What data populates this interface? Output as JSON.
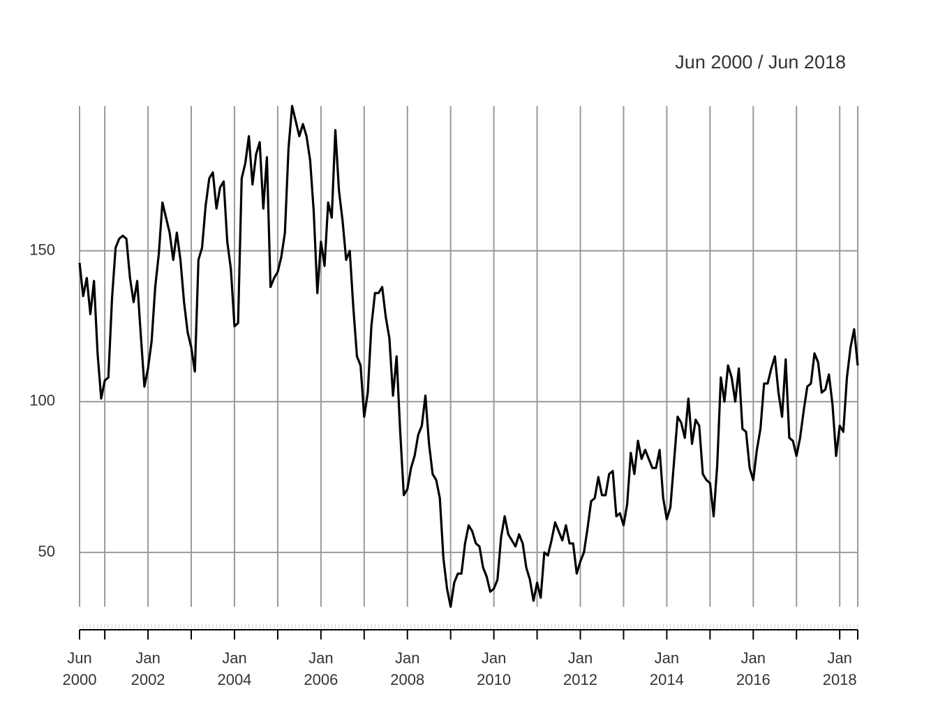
{
  "chart_data": {
    "type": "line",
    "title": "Jun 2000 / Jun 2018",
    "x": [
      "2000-06",
      "2000-07",
      "2000-08",
      "2000-09",
      "2000-10",
      "2000-11",
      "2000-12",
      "2001-01",
      "2001-02",
      "2001-03",
      "2001-04",
      "2001-05",
      "2001-06",
      "2001-07",
      "2001-08",
      "2001-09",
      "2001-10",
      "2001-11",
      "2001-12",
      "2002-01",
      "2002-02",
      "2002-03",
      "2002-04",
      "2002-05",
      "2002-06",
      "2002-07",
      "2002-08",
      "2002-09",
      "2002-10",
      "2002-11",
      "2002-12",
      "2003-01",
      "2003-02",
      "2003-03",
      "2003-04",
      "2003-05",
      "2003-06",
      "2003-07",
      "2003-08",
      "2003-09",
      "2003-10",
      "2003-11",
      "2003-12",
      "2004-01",
      "2004-02",
      "2004-03",
      "2004-04",
      "2004-05",
      "2004-06",
      "2004-07",
      "2004-08",
      "2004-09",
      "2004-10",
      "2004-11",
      "2004-12",
      "2005-01",
      "2005-02",
      "2005-03",
      "2005-04",
      "2005-05",
      "2005-06",
      "2005-07",
      "2005-08",
      "2005-09",
      "2005-10",
      "2005-11",
      "2005-12",
      "2006-01",
      "2006-02",
      "2006-03",
      "2006-04",
      "2006-05",
      "2006-06",
      "2006-07",
      "2006-08",
      "2006-09",
      "2006-10",
      "2006-11",
      "2006-12",
      "2007-01",
      "2007-02",
      "2007-03",
      "2007-04",
      "2007-05",
      "2007-06",
      "2007-07",
      "2007-08",
      "2007-09",
      "2007-10",
      "2007-11",
      "2007-12",
      "2008-01",
      "2008-02",
      "2008-03",
      "2008-04",
      "2008-05",
      "2008-06",
      "2008-07",
      "2008-08",
      "2008-09",
      "2008-10",
      "2008-11",
      "2008-12",
      "2009-01",
      "2009-02",
      "2009-03",
      "2009-04",
      "2009-05",
      "2009-06",
      "2009-07",
      "2009-08",
      "2009-09",
      "2009-10",
      "2009-11",
      "2009-12",
      "2010-01",
      "2010-02",
      "2010-03",
      "2010-04",
      "2010-05",
      "2010-06",
      "2010-07",
      "2010-08",
      "2010-09",
      "2010-10",
      "2010-11",
      "2010-12",
      "2011-01",
      "2011-02",
      "2011-03",
      "2011-04",
      "2011-05",
      "2011-06",
      "2011-07",
      "2011-08",
      "2011-09",
      "2011-10",
      "2011-11",
      "2011-12",
      "2012-01",
      "2012-02",
      "2012-03",
      "2012-04",
      "2012-05",
      "2012-06",
      "2012-07",
      "2012-08",
      "2012-09",
      "2012-10",
      "2012-11",
      "2012-12",
      "2013-01",
      "2013-02",
      "2013-03",
      "2013-04",
      "2013-05",
      "2013-06",
      "2013-07",
      "2013-08",
      "2013-09",
      "2013-10",
      "2013-11",
      "2013-12",
      "2014-01",
      "2014-02",
      "2014-03",
      "2014-04",
      "2014-05",
      "2014-06",
      "2014-07",
      "2014-08",
      "2014-09",
      "2014-10",
      "2014-11",
      "2014-12",
      "2015-01",
      "2015-02",
      "2015-03",
      "2015-04",
      "2015-05",
      "2015-06",
      "2015-07",
      "2015-08",
      "2015-09",
      "2015-10",
      "2015-11",
      "2015-12",
      "2016-01",
      "2016-02",
      "2016-03",
      "2016-04",
      "2016-05",
      "2016-06",
      "2016-07",
      "2016-08",
      "2016-09",
      "2016-10",
      "2016-11",
      "2016-12",
      "2017-01",
      "2017-02",
      "2017-03",
      "2017-04",
      "2017-05",
      "2017-06",
      "2017-07",
      "2017-08",
      "2017-09",
      "2017-10",
      "2017-11",
      "2017-12",
      "2018-01",
      "2018-02",
      "2018-03",
      "2018-04",
      "2018-05",
      "2018-06"
    ],
    "values": [
      146,
      135,
      141,
      129,
      140,
      116,
      101,
      107,
      108,
      134,
      151,
      154,
      155,
      154,
      141,
      133,
      140,
      122,
      105,
      111,
      120,
      138,
      149,
      166,
      161,
      156,
      147,
      156,
      147,
      133,
      123,
      118,
      110,
      147,
      151,
      165,
      174,
      176,
      164,
      171,
      173,
      153,
      144,
      125,
      126,
      174,
      179,
      188,
      172,
      182,
      186,
      164,
      181,
      138,
      141,
      143,
      148,
      156,
      184,
      198,
      193,
      188,
      192,
      188,
      180,
      163,
      136,
      153,
      145,
      166,
      161,
      190,
      170,
      160,
      147,
      150,
      131,
      115,
      112,
      95,
      103,
      125,
      136,
      136,
      138,
      128,
      121,
      102,
      115,
      90,
      69,
      71,
      78,
      82,
      89,
      92,
      102,
      86,
      76,
      74,
      68,
      48,
      38,
      32,
      40,
      43,
      43,
      53,
      59,
      57,
      53,
      52,
      45,
      42,
      37,
      38,
      41,
      55,
      62,
      56,
      54,
      52,
      56,
      53,
      45,
      41,
      34,
      40,
      35,
      50,
      49,
      54,
      60,
      57,
      54,
      59,
      53,
      53,
      43,
      47,
      50,
      58,
      67,
      68,
      75,
      69,
      69,
      76,
      77,
      62,
      63,
      59,
      66,
      83,
      76,
      87,
      81,
      84,
      81,
      78,
      78,
      84,
      68,
      61,
      65,
      80,
      95,
      93,
      88,
      101,
      86,
      94,
      92,
      76,
      74,
      73,
      62,
      79,
      108,
      100,
      112,
      108,
      100,
      111,
      91,
      90,
      78,
      74,
      84,
      91,
      106,
      106,
      111,
      115,
      103,
      95,
      114,
      88,
      87,
      82,
      88,
      97,
      105,
      106,
      116,
      113,
      103,
      104,
      109,
      99,
      82,
      92,
      90,
      108,
      118,
      124,
      112
    ],
    "color": "#000000",
    "ylim": [
      32,
      198
    ],
    "yticks": [
      50,
      100,
      150
    ],
    "xlim": [
      "2000-06",
      "2018-06"
    ],
    "xticks": [
      {
        "value": "2000-06",
        "label": "Jun\n2000"
      },
      {
        "value": "2002-01",
        "label": "Jan\n2002"
      },
      {
        "value": "2004-01",
        "label": "Jan\n2004"
      },
      {
        "value": "2006-01",
        "label": "Jan\n2006"
      },
      {
        "value": "2008-01",
        "label": "Jan\n2008"
      },
      {
        "value": "2010-01",
        "label": "Jan\n2010"
      },
      {
        "value": "2012-01",
        "label": "Jan\n2012"
      },
      {
        "value": "2014-01",
        "label": "Jan\n2014"
      },
      {
        "value": "2016-01",
        "label": "Jan\n2016"
      },
      {
        "value": "2018-01",
        "label": "Jan\n2018"
      }
    ],
    "xgrid": [
      "2000-06",
      "2001-01",
      "2002-01",
      "2003-01",
      "2004-01",
      "2005-01",
      "2006-01",
      "2007-01",
      "2008-01",
      "2009-01",
      "2010-01",
      "2011-01",
      "2012-01",
      "2013-01",
      "2014-01",
      "2015-01",
      "2016-01",
      "2017-01",
      "2018-01",
      "2018-06"
    ],
    "grid": true
  }
}
